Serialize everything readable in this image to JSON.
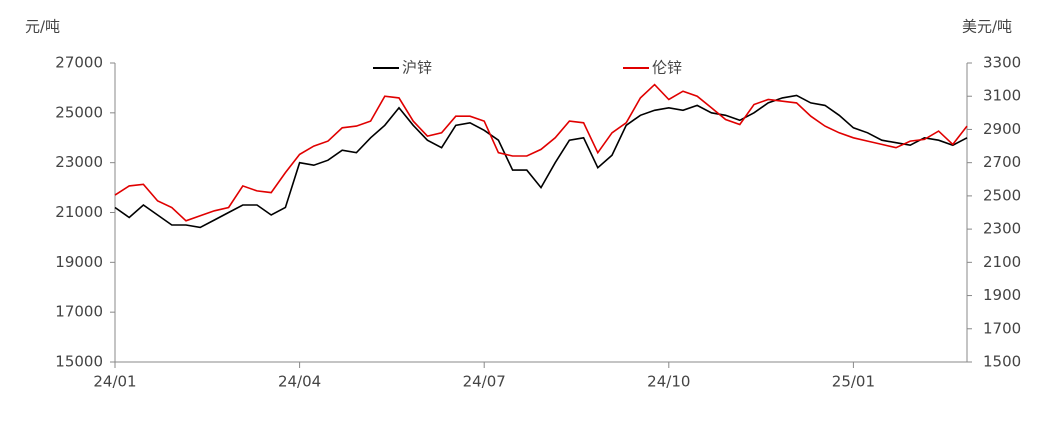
{
  "chart_data": {
    "type": "line",
    "y_label": "元/吨",
    "y2_label": "美元/吨",
    "categories": [
      "24/01",
      null,
      null,
      null,
      null,
      null,
      null,
      null,
      null,
      null,
      null,
      null,
      null,
      "24/04",
      null,
      null,
      null,
      null,
      null,
      null,
      null,
      null,
      null,
      null,
      null,
      null,
      "24/07",
      null,
      null,
      null,
      null,
      null,
      null,
      null,
      null,
      null,
      null,
      null,
      null,
      "24/10",
      null,
      null,
      null,
      null,
      null,
      null,
      null,
      null,
      null,
      null,
      null,
      null,
      "25/01",
      null,
      null,
      null,
      null,
      null,
      null,
      null,
      null
    ],
    "series": [
      {
        "name": "沪锌",
        "color": "#000000",
        "values": [
          21200,
          20800,
          21300,
          20900,
          20500,
          20500,
          20400,
          20700,
          21000,
          21300,
          21300,
          20900,
          21200,
          23000,
          22900,
          23100,
          23500,
          23400,
          24000,
          24500,
          25200,
          24500,
          23900,
          23600,
          24500,
          24600,
          24300,
          23900,
          22700,
          22700,
          22000,
          23000,
          23900,
          24000,
          22800,
          23300,
          24500,
          24900,
          25100,
          25200,
          25100,
          25300,
          25000,
          24900,
          24700,
          25000,
          25400,
          25600,
          25700,
          25400,
          25300,
          24900,
          24400,
          24200,
          23900,
          23800,
          23700,
          24000,
          23900,
          23700,
          24000
        ]
      },
      {
        "name": "伦锌",
        "color": "#e00000",
        "axis": "y2",
        "values": [
          2505,
          2560,
          2570,
          2470,
          2430,
          2350,
          2380,
          2410,
          2430,
          2560,
          2530,
          2520,
          2640,
          2750,
          2800,
          2830,
          2910,
          2920,
          2950,
          3100,
          3090,
          2950,
          2860,
          2880,
          2980,
          2980,
          2950,
          2760,
          2740,
          2740,
          2780,
          2850,
          2950,
          2940,
          2760,
          2880,
          2940,
          3090,
          3170,
          3080,
          3130,
          3100,
          3030,
          2960,
          2930,
          3050,
          3080,
          3070,
          3060,
          2980,
          2920,
          2880,
          2850,
          2830,
          2810,
          2790,
          2830,
          2840,
          2890,
          2810,
          2920
        ]
      }
    ],
    "ylim": [
      15000,
      27000
    ],
    "yticks": [
      15000,
      17000,
      19000,
      21000,
      23000,
      25000,
      27000
    ],
    "y2lim": [
      1500,
      3300
    ],
    "y2ticks": [
      1500,
      1700,
      1900,
      2100,
      2300,
      2500,
      2700,
      2900,
      3100,
      3300
    ],
    "legend": "top"
  }
}
